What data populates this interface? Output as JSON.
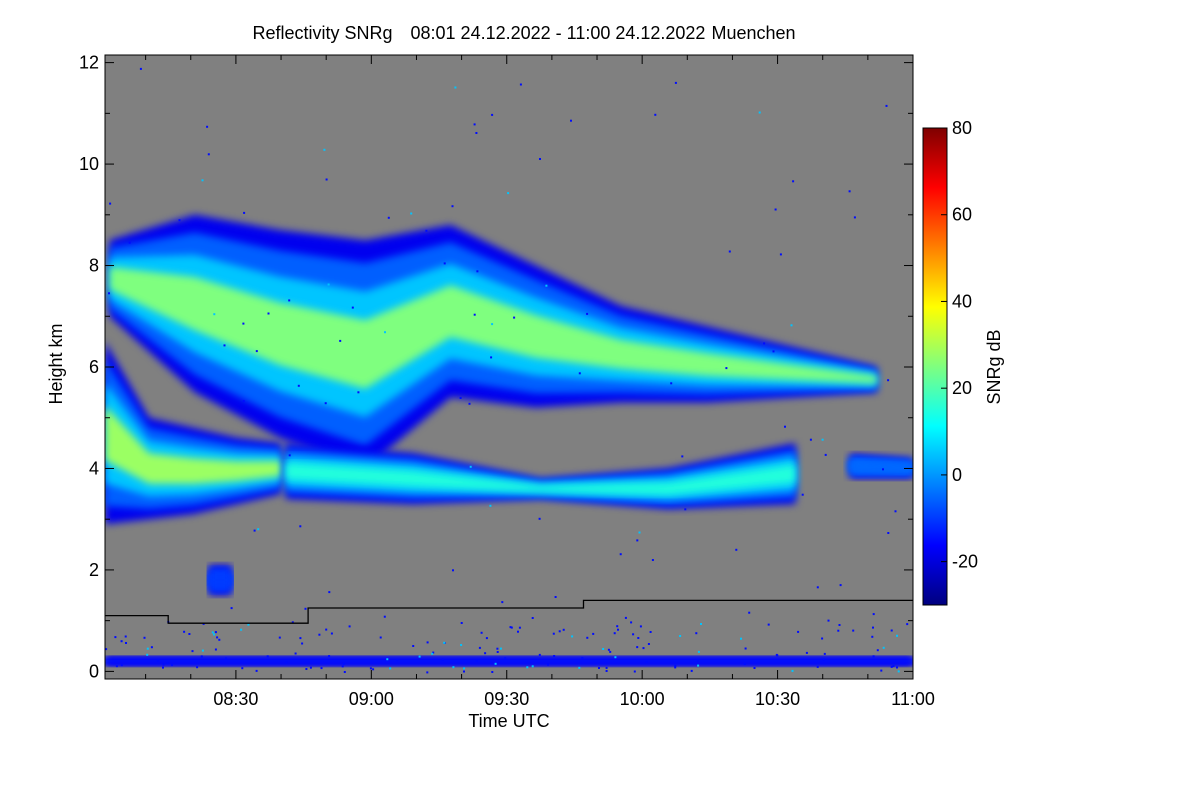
{
  "chart_data": {
    "type": "heatmap",
    "title": "Reflectivity SNRg",
    "time_range": "08:01 24.12.2022 - 11:00 24.12.2022",
    "location": "Muenchen",
    "xlabel": "Time UTC",
    "ylabel": "Height km",
    "xlim_minutes_utc": [
      481,
      660
    ],
    "ylim_km": [
      -0.15,
      12.15
    ],
    "x_ticks": [
      {
        "minutes": 510,
        "label": "08:30"
      },
      {
        "minutes": 540,
        "label": "09:00"
      },
      {
        "minutes": 570,
        "label": "09:30"
      },
      {
        "minutes": 600,
        "label": "10:00"
      },
      {
        "minutes": 630,
        "label": "10:30"
      },
      {
        "minutes": 660,
        "label": "11:00"
      }
    ],
    "y_ticks": [
      0,
      2,
      4,
      6,
      8,
      10,
      12
    ],
    "colorbar": {
      "label": "SNRg dB",
      "range": [
        -30,
        80
      ],
      "ticks": [
        -20,
        0,
        20,
        40,
        60,
        80
      ],
      "colors": [
        "#00007f",
        "#0000ff",
        "#007fff",
        "#00ffff",
        "#7fff7f",
        "#ffff00",
        "#ff7f00",
        "#ff0000",
        "#7f0000"
      ]
    },
    "background_color": "#808080",
    "layers": [
      {
        "name": "upper cloud layer",
        "start_min": 482,
        "end_min": 652,
        "top_km": [
          8.5,
          9.0,
          8.7,
          8.5,
          8.8,
          8.0,
          7.2,
          6.8,
          6.4,
          6.0
        ],
        "base_km": [
          7.0,
          5.5,
          4.6,
          4.0,
          5.4,
          5.2,
          5.3,
          5.3,
          5.4,
          5.5
        ],
        "peak_snr_db": 25
      },
      {
        "name": "lower cloud layer",
        "start_min": 481,
        "end_min": 520,
        "top_km": [
          6.5,
          5.0,
          4.8,
          4.6,
          4.5
        ],
        "base_km": [
          2.9,
          3.0,
          3.1,
          3.3,
          3.5
        ],
        "peak_snr_db": 28
      },
      {
        "name": "mid thin layer",
        "start_min": 521,
        "end_min": 634,
        "top_km": [
          4.5,
          4.3,
          3.8,
          4.0,
          4.5
        ],
        "base_km": [
          3.4,
          3.3,
          3.4,
          3.2,
          3.3
        ],
        "peak_snr_db": 15
      },
      {
        "name": "isolated patch",
        "start_min": 646,
        "end_min": 660,
        "top_km": [
          4.3,
          4.2
        ],
        "base_km": [
          3.8,
          3.8
        ],
        "peak_snr_db": -5
      },
      {
        "name": "low echo",
        "start_min": 504,
        "end_min": 509,
        "top_km": [
          2.1,
          2.1
        ],
        "base_km": [
          1.5,
          1.5
        ],
        "peak_snr_db": -10
      },
      {
        "name": "near-surface clutter",
        "start_min": 481,
        "end_min": 660,
        "top_km": [
          0.3,
          0.3
        ],
        "base_km": [
          0.1,
          0.1
        ],
        "peak_snr_db": -15
      }
    ],
    "step_line": {
      "color": "#000000",
      "points": [
        {
          "minutes": 481,
          "km": 1.1
        },
        {
          "minutes": 495,
          "km": 1.1
        },
        {
          "minutes": 495,
          "km": 0.95
        },
        {
          "minutes": 526,
          "km": 0.95
        },
        {
          "minutes": 526,
          "km": 1.25
        },
        {
          "minutes": 587,
          "km": 1.25
        },
        {
          "minutes": 587,
          "km": 1.4
        },
        {
          "minutes": 660,
          "km": 1.4
        }
      ]
    }
  }
}
